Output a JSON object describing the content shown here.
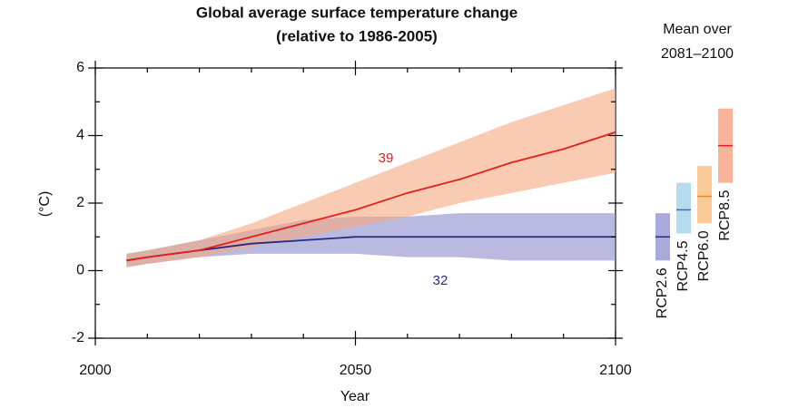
{
  "chart_data": {
    "type": "line",
    "title": "Global average surface temperature change",
    "subtitle": "(relative to 1986-2005)",
    "xlabel": "Year",
    "ylabel": "(°C)",
    "x": [
      2006,
      2010,
      2020,
      2030,
      2040,
      2050,
      2060,
      2070,
      2080,
      2090,
      2100
    ],
    "xlim": [
      2000,
      2100
    ],
    "xticks": [
      2000,
      2050,
      2100
    ],
    "xminorticks": [
      2010,
      2020,
      2030,
      2040,
      2060,
      2070,
      2080,
      2090
    ],
    "ylim": [
      -2,
      6
    ],
    "yticks": [
      -2,
      0,
      2,
      4,
      6
    ],
    "yminorticks": [
      -1,
      1,
      3,
      5
    ],
    "series": [
      {
        "color": "#27297f",
        "band_color": "#8c8ccc",
        "annotation": "32",
        "values": [
          0.3,
          0.4,
          0.6,
          0.8,
          0.9,
          1.0,
          1.0,
          1.0,
          1.0,
          1.0,
          1.0
        ],
        "upper": [
          0.5,
          0.6,
          0.9,
          1.2,
          1.5,
          1.6,
          1.6,
          1.7,
          1.7,
          1.7,
          1.7
        ],
        "lower": [
          0.1,
          0.2,
          0.4,
          0.5,
          0.5,
          0.5,
          0.4,
          0.4,
          0.3,
          0.3,
          0.3
        ]
      },
      {
        "color": "#e3201b",
        "band_color": "#f6a981",
        "annotation": "39",
        "values": [
          0.3,
          0.4,
          0.6,
          1.0,
          1.4,
          1.8,
          2.3,
          2.7,
          3.2,
          3.6,
          4.1
        ],
        "upper": [
          0.5,
          0.6,
          0.9,
          1.4,
          2.0,
          2.6,
          3.2,
          3.8,
          4.4,
          4.9,
          5.4
        ],
        "lower": [
          0.1,
          0.2,
          0.4,
          0.7,
          1.0,
          1.3,
          1.6,
          2.0,
          2.3,
          2.6,
          2.9
        ]
      }
    ],
    "panel_title": [
      "Mean over",
      "2081–2100"
    ],
    "ranges": [
      {
        "name": "RCP2.6",
        "color": "#27297f",
        "band_color": "#a9a9dc",
        "low": 0.3,
        "mean": 1.0,
        "high": 1.7
      },
      {
        "name": "RCP4.5",
        "color": "#3a6fae",
        "band_color": "#b5dbef",
        "low": 1.1,
        "mean": 1.8,
        "high": 2.6
      },
      {
        "name": "RCP6.0",
        "color": "#e8872d",
        "band_color": "#fbc995",
        "low": 1.4,
        "mean": 2.2,
        "high": 3.1
      },
      {
        "name": "RCP8.5",
        "color": "#e3201b",
        "band_color": "#f8b49a",
        "low": 2.6,
        "mean": 3.7,
        "high": 4.8
      }
    ]
  }
}
